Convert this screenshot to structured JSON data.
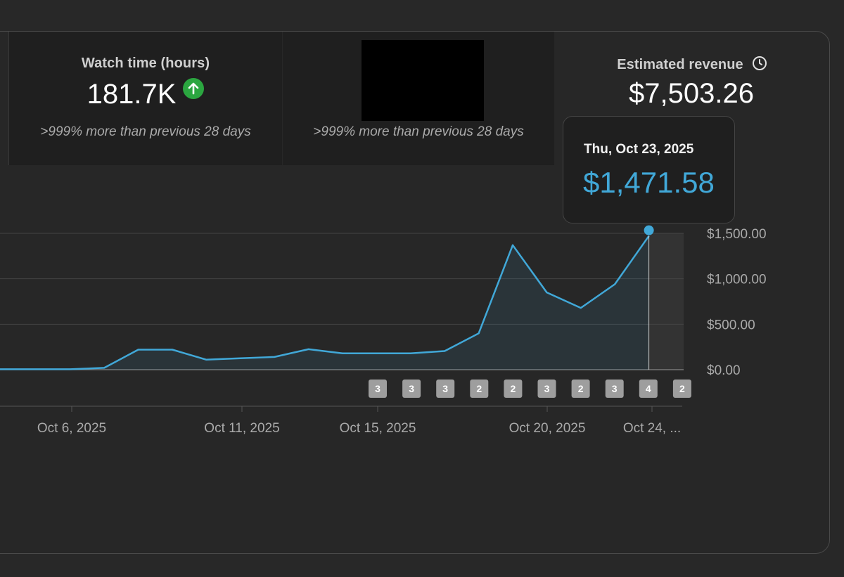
{
  "cards": {
    "watch_time": {
      "label": "Watch time (hours)",
      "value": "181.7K",
      "compare": ">999% more than previous 28 days",
      "trend_icon": "arrow-up-circle-icon"
    },
    "redacted": {
      "compare": ">999% more than previous 28 days"
    },
    "revenue": {
      "label": "Estimated revenue",
      "value": "$7,503.26",
      "info_icon": "clock-icon"
    }
  },
  "tooltip": {
    "date": "Thu, Oct 23, 2025",
    "value": "$1,471.58"
  },
  "colors": {
    "line": "#41a8d8",
    "up_green": "#2ba640",
    "badge": "#9e9e9e"
  },
  "chart_data": {
    "type": "area",
    "title": "Estimated revenue",
    "ylim": [
      0,
      1500
    ],
    "y_ticks": [
      "$1,500.00",
      "$1,000.00",
      "$500.00",
      "$0.00"
    ],
    "x_labels": [
      "Oct 6, 2025",
      "Oct 11, 2025",
      "Oct 15, 2025",
      "Oct 20, 2025",
      "Oct 24, ..."
    ],
    "x": [
      "Oct 4",
      "Oct 5",
      "Oct 6",
      "Oct 7",
      "Oct 8",
      "Oct 9",
      "Oct 10",
      "Oct 11",
      "Oct 12",
      "Oct 13",
      "Oct 14",
      "Oct 15",
      "Oct 16",
      "Oct 17",
      "Oct 18",
      "Oct 19",
      "Oct 20",
      "Oct 21",
      "Oct 22",
      "Oct 23"
    ],
    "values": [
      5,
      5,
      5,
      20,
      220,
      220,
      110,
      125,
      140,
      225,
      180,
      180,
      180,
      205,
      400,
      1370,
      850,
      680,
      940,
      1471.58
    ],
    "highlight_index": 19,
    "badges": [
      "3",
      "3",
      "3",
      "2",
      "2",
      "3",
      "2",
      "3",
      "4",
      "2"
    ]
  }
}
